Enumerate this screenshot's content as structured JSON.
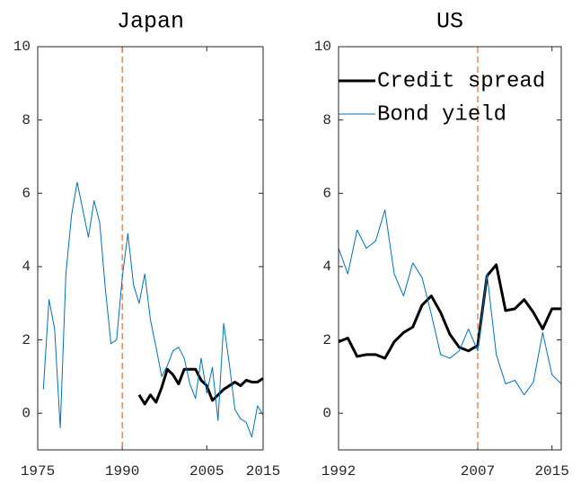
{
  "chart_data": [
    {
      "type": "line",
      "title": "Japan",
      "x": [
        1976,
        1977,
        1978,
        1979,
        1980,
        1981,
        1982,
        1983,
        1984,
        1985,
        1986,
        1987,
        1988,
        1989,
        1990,
        1991,
        1992,
        1993,
        1994,
        1995,
        1996,
        1997,
        1998,
        1999,
        2000,
        2001,
        2002,
        2003,
        2004,
        2005,
        2006,
        2007,
        2008,
        2009,
        2010,
        2011,
        2012,
        2013,
        2014,
        2015
      ],
      "series": [
        {
          "color": "#000000",
          "width": 3,
          "values": [
            null,
            null,
            null,
            null,
            null,
            null,
            null,
            null,
            null,
            null,
            null,
            null,
            null,
            null,
            null,
            null,
            null,
            0.5,
            0.25,
            0.5,
            0.3,
            0.7,
            1.2,
            1.05,
            0.8,
            1.2,
            1.2,
            1.2,
            0.9,
            0.75,
            0.35,
            0.5,
            0.65,
            0.75,
            0.85,
            0.75,
            0.9,
            0.85,
            0.85,
            0.95
          ]
        },
        {
          "color": "#0072bd",
          "width": 1,
          "values": [
            0.65,
            3.1,
            2.3,
            -0.4,
            3.8,
            5.4,
            6.3,
            5.55,
            4.8,
            5.8,
            5.2,
            3.4,
            1.9,
            2.0,
            3.7,
            4.9,
            3.5,
            3.0,
            3.8,
            2.55,
            1.8,
            1.0,
            1.3,
            1.7,
            1.8,
            1.5,
            0.8,
            0.4,
            1.5,
            0.55,
            1.25,
            -0.2,
            2.45,
            1.35,
            0.1,
            -0.15,
            -0.25,
            -0.65,
            0.2,
            -0.05
          ]
        }
      ],
      "vline": 1990,
      "vline_color": "#d95319",
      "xlim": [
        1975,
        2015
      ],
      "xticks": [
        1975,
        1990,
        2005,
        2015
      ],
      "ylim": [
        -1,
        10
      ],
      "yticks": [
        0,
        2,
        4,
        6,
        8,
        10
      ]
    },
    {
      "type": "line",
      "title": "US",
      "x": [
        1992,
        1993,
        1994,
        1995,
        1996,
        1997,
        1998,
        1999,
        2000,
        2001,
        2002,
        2003,
        2004,
        2005,
        2006,
        2007,
        2008,
        2009,
        2010,
        2011,
        2012,
        2013,
        2014,
        2015,
        2016
      ],
      "series": [
        {
          "name": "Credit spread",
          "color": "#000000",
          "width": 3,
          "values": [
            1.95,
            2.05,
            1.55,
            1.6,
            1.6,
            1.5,
            1.95,
            2.2,
            2.35,
            2.95,
            3.2,
            2.75,
            2.15,
            1.8,
            1.7,
            1.85,
            3.75,
            4.05,
            2.8,
            2.85,
            3.1,
            2.75,
            2.3,
            2.85,
            2.85
          ]
        },
        {
          "name": "Bond yield",
          "color": "#0072bd",
          "width": 1,
          "values": [
            4.5,
            3.8,
            5.0,
            4.5,
            4.7,
            5.55,
            3.8,
            3.2,
            4.1,
            3.7,
            2.7,
            1.6,
            1.5,
            1.7,
            2.3,
            1.7,
            3.8,
            1.6,
            0.8,
            0.9,
            0.5,
            0.85,
            2.2,
            1.05,
            0.8
          ]
        }
      ],
      "vline": 2007,
      "vline_color": "#d95319",
      "legend": "north",
      "xlim": [
        1992,
        2016
      ],
      "xticks": [
        1992,
        2007,
        2015
      ],
      "ylim": [
        -1,
        10
      ],
      "yticks": [
        0,
        2,
        4,
        6,
        8,
        10
      ]
    }
  ]
}
